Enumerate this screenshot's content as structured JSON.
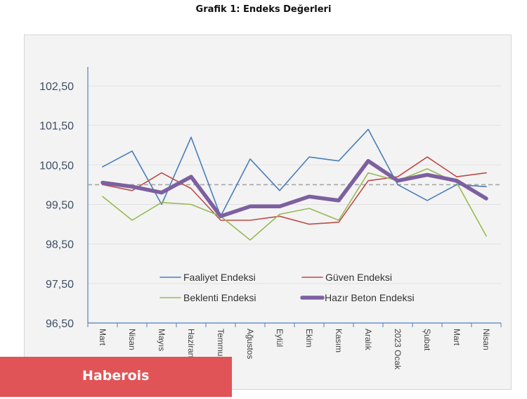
{
  "chart_data": {
    "type": "line",
    "title": "Grafik 1: Endeks Değerleri",
    "xlabel": "",
    "ylabel": "",
    "categories": [
      "Mart",
      "Nisan",
      "Mayıs",
      "Haziran",
      "Temmuz",
      "Ağustos",
      "Eylül",
      "Ekim",
      "Kasım",
      "Aralık",
      "2023 Ocak",
      "Şubat",
      "Mart",
      "Nisan"
    ],
    "ylim": [
      96.5,
      102.5
    ],
    "yticks": [
      "102,50",
      "101,50",
      "100,50",
      "99,50",
      "98,50",
      "97,50",
      "96,50"
    ],
    "ytick_values": [
      102.5,
      101.5,
      100.5,
      99.5,
      98.5,
      97.5,
      96.5
    ],
    "reference_line": 100,
    "legend": "bottom-center",
    "grid": true,
    "series": [
      {
        "name": "Faaliyet Endeksi",
        "color": "#4a7ebb",
        "values": [
          100.45,
          100.85,
          99.5,
          101.2,
          99.2,
          100.65,
          99.85,
          100.7,
          100.6,
          101.4,
          100.0,
          99.6,
          100.0,
          99.95
        ]
      },
      {
        "name": "Güven Endeksi",
        "color": "#be4b48",
        "values": [
          100.0,
          99.85,
          100.3,
          99.9,
          99.1,
          99.1,
          99.2,
          99.0,
          99.05,
          100.1,
          100.2,
          100.7,
          100.2,
          100.3
        ]
      },
      {
        "name": "Beklenti Endeksi",
        "color": "#98b954",
        "values": [
          99.7,
          99.1,
          99.55,
          99.5,
          99.2,
          98.6,
          99.25,
          99.4,
          99.1,
          100.3,
          100.1,
          100.4,
          100.05,
          98.7
        ]
      },
      {
        "name": "Hazır Beton Endeksi",
        "color": "#7d60a0",
        "values": [
          100.05,
          99.95,
          99.8,
          100.2,
          99.2,
          99.45,
          99.45,
          99.7,
          99.6,
          100.6,
          100.1,
          100.25,
          100.1,
          99.65
        ]
      }
    ]
  },
  "branding": {
    "label": "Haberois"
  }
}
